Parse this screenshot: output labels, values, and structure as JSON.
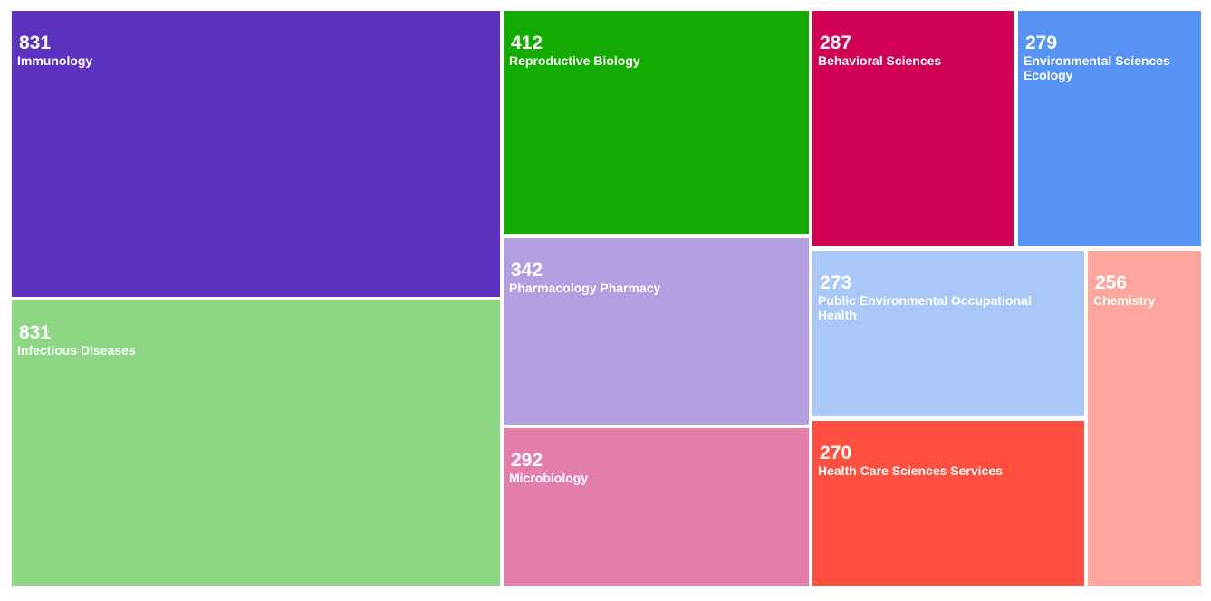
{
  "chart_data": {
    "type": "treemap",
    "items": [
      {
        "label": "Immunology",
        "value": 831,
        "color": "#5e32c0"
      },
      {
        "label": "Infectious Diseases",
        "value": 831,
        "color": "#8dd684"
      },
      {
        "label": "Reproductive Biology",
        "value": 412,
        "color": "#13ab02"
      },
      {
        "label": "Pharmacology Pharmacy",
        "value": 342,
        "color": "#b39ee0"
      },
      {
        "label": "Microbiology",
        "value": 292,
        "color": "#e47fac"
      },
      {
        "label": "Behavioral Sciences",
        "value": 287,
        "color": "#d10256"
      },
      {
        "label": "Environmental Sciences Ecology",
        "value": 279,
        "color": "#5693f5"
      },
      {
        "label": "Public Environmental Occupational Health",
        "value": 273,
        "color": "#a9c8f8"
      },
      {
        "label": "Health Care Sciences Services",
        "value": 270,
        "color": "#fe4f40"
      },
      {
        "label": "Chemistry",
        "value": 256,
        "color": "#fea59d"
      }
    ]
  }
}
